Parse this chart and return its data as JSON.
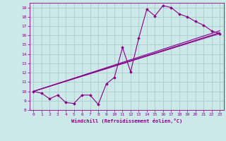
{
  "xlabel": "Windchill (Refroidissement éolien,°C)",
  "bg_color": "#cce8e8",
  "line_color": "#880088",
  "grid_color": "#aacccc",
  "xlim": [
    -0.5,
    23.5
  ],
  "ylim": [
    8,
    19.5
  ],
  "xticks": [
    0,
    1,
    2,
    3,
    4,
    5,
    6,
    7,
    8,
    9,
    10,
    11,
    12,
    13,
    14,
    15,
    16,
    17,
    18,
    19,
    20,
    21,
    22,
    23
  ],
  "yticks": [
    8,
    9,
    10,
    11,
    12,
    13,
    14,
    15,
    16,
    17,
    18,
    19
  ],
  "series1_x": [
    0,
    1,
    2,
    3,
    4,
    5,
    6,
    7,
    8,
    9,
    10,
    11,
    12,
    13,
    14,
    15,
    16,
    17,
    18,
    19,
    20,
    21,
    22,
    23
  ],
  "series1_y": [
    10.0,
    9.8,
    9.2,
    9.6,
    8.8,
    8.7,
    9.6,
    9.6,
    8.6,
    10.8,
    11.5,
    14.7,
    12.1,
    15.7,
    18.8,
    18.1,
    19.2,
    19.0,
    18.3,
    18.0,
    17.5,
    17.1,
    16.5,
    16.2
  ],
  "series2_x": [
    0,
    23
  ],
  "series2_y": [
    10.0,
    16.2
  ],
  "series3_x": [
    0,
    23
  ],
  "series3_y": [
    10.0,
    16.3
  ],
  "series4_x": [
    0,
    23
  ],
  "series4_y": [
    10.0,
    16.5
  ]
}
